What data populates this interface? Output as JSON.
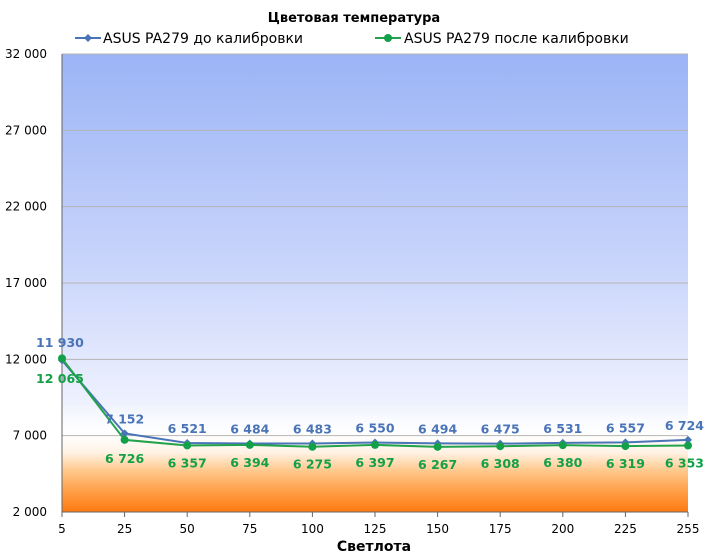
{
  "chart_data": {
    "type": "line",
    "title": "Цветовая температура",
    "xlabel": "Светлота",
    "ylabel": "",
    "categories": [
      "5",
      "25",
      "50",
      "75",
      "100",
      "125",
      "150",
      "175",
      "200",
      "225",
      "255"
    ],
    "ylim": [
      2000,
      32000
    ],
    "yticks": [
      2000,
      7000,
      12000,
      17000,
      22000,
      27000,
      32000
    ],
    "ytick_labels": [
      "2 000",
      "7 000",
      "12 000",
      "17 000",
      "22 000",
      "27 000",
      "32 000"
    ],
    "grid": true,
    "legend_position": "top",
    "series": [
      {
        "name": "ASUS PA279 до калибровки",
        "color": "#4a74b8",
        "label_color": "#4a74b8",
        "values": [
          11930,
          7152,
          6521,
          6484,
          6483,
          6550,
          6494,
          6475,
          6531,
          6557,
          6724
        ],
        "labels": [
          "11 930",
          "7 152",
          "6 521",
          "6 484",
          "6 483",
          "6 550",
          "6 494",
          "6 475",
          "6 531",
          "6 557",
          "6 724"
        ]
      },
      {
        "name": "ASUS PA279 после калибровки",
        "color": "#22a24a",
        "label_color": "#13a048",
        "values": [
          12065,
          6726,
          6357,
          6394,
          6275,
          6397,
          6267,
          6308,
          6380,
          6319,
          6353
        ],
        "labels": [
          "12 065",
          "6 726",
          "6 357",
          "6 394",
          "6 275",
          "6 397",
          "6 267",
          "6 308",
          "6 380",
          "6 319",
          "6 353"
        ]
      }
    ]
  }
}
